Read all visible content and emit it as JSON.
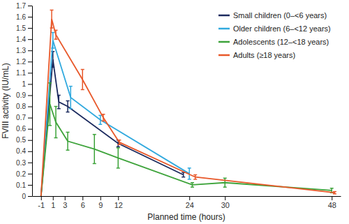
{
  "chart_data": {
    "type": "line",
    "x_label": "Planned time (hours)",
    "y_label": "FVIII activity (IU/mL)",
    "xlim": [
      -2.5,
      49.5
    ],
    "xticks": [
      -1,
      1,
      3,
      6,
      9,
      12,
      24,
      30,
      48
    ],
    "ylim": [
      0,
      1.7
    ],
    "yticks": [
      0,
      0.1,
      0.2,
      0.3,
      0.4,
      0.5,
      0.6,
      0.7,
      0.8,
      0.9,
      1,
      1.1,
      1.2,
      1.3,
      1.4,
      1.5,
      1.6,
      1.7
    ],
    "grid": false,
    "legend": "upper right",
    "series": [
      {
        "name": "Small children (0–<6 years)",
        "color": "#1b2a5e",
        "x": [
          -1,
          1,
          2,
          3.5,
          12,
          23
        ],
        "values": [
          0,
          1.22,
          0.84,
          0.8,
          0.47,
          0.19
        ],
        "errors": [
          null,
          0.07,
          0.06,
          0.05,
          0.03,
          0.02
        ]
      },
      {
        "name": "Older children (6–<12 years)",
        "color": "#30a9de",
        "x": [
          -1,
          1,
          4,
          9,
          24
        ],
        "values": [
          0,
          1.39,
          0.88,
          0.68,
          0.2
        ],
        "errors": [
          null,
          0.07,
          0.1,
          0.04,
          0.05
        ]
      },
      {
        "name": "Adolescents (12–<18 years)",
        "color": "#3da33a",
        "x": [
          -1,
          0.5,
          1.5,
          3.5,
          8,
          12,
          24.5,
          30,
          48
        ],
        "values": [
          0,
          0.82,
          0.66,
          0.49,
          0.42,
          0.34,
          0.1,
          0.12,
          0.05
        ],
        "errors": [
          null,
          0.19,
          0.14,
          0.08,
          0.13,
          0.09,
          0.02,
          0.04,
          0.02
        ]
      },
      {
        "name": "Adults (≥18 years)",
        "color": "#e8582a",
        "x": [
          -1,
          0.8,
          1.5,
          6,
          9.5,
          12.2,
          25,
          48.5
        ],
        "values": [
          0,
          1.58,
          1.44,
          1.04,
          0.7,
          0.48,
          0.17,
          0.03
        ],
        "errors": [
          null,
          0.08,
          0.04,
          0.09,
          0.03,
          0.02,
          0.02,
          0.01
        ]
      }
    ]
  }
}
